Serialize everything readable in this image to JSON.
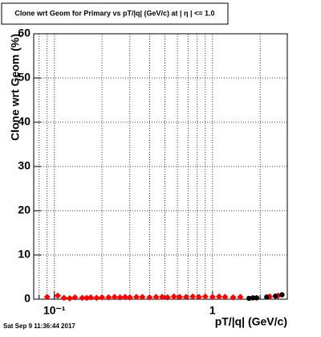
{
  "chart_data": {
    "type": "scatter",
    "title": "Clone wrt Geom for Primary vs pT/|q| (GeV/c) at | η | <= 1.0",
    "x_label": "pT/|q| (GeV/c)",
    "y_label": "Clone wrt Geom (%)",
    "footer": "Sat Sep  9 11:36:44 2017",
    "xlog": true,
    "xlim": [
      0.074,
      2.97
    ],
    "ylim": [
      0,
      60
    ],
    "xticks": [
      {
        "value": 0.1,
        "label": "10⁻¹"
      },
      1
    ],
    "yticks": [
      0,
      10,
      20,
      30,
      40,
      50,
      60
    ],
    "xgrid": [
      0.08,
      0.09,
      0.1,
      0.2,
      0.3,
      0.4,
      0.5,
      0.6,
      0.7,
      0.8,
      0.9,
      1,
      2
    ],
    "grid": true,
    "series": [
      {
        "color": "#ff0000",
        "marker": "diamond",
        "x": [
          0.09,
          0.105,
          0.115,
          0.125,
          0.135,
          0.15,
          0.16,
          0.17,
          0.185,
          0.2,
          0.22,
          0.24,
          0.26,
          0.28,
          0.3,
          0.33,
          0.36,
          0.4,
          0.44,
          0.48,
          0.52,
          0.57,
          0.62,
          0.68,
          0.75,
          0.82,
          0.9,
          1.0,
          1.1,
          1.2,
          1.35,
          1.5,
          2.3,
          2.6
        ],
        "values": [
          0.5,
          0.8,
          0.3,
          0.2,
          0.4,
          0.3,
          0.3,
          0.4,
          0.3,
          0.4,
          0.4,
          0.5,
          0.4,
          0.5,
          0.4,
          0.5,
          0.5,
          0.4,
          0.5,
          0.5,
          0.4,
          0.6,
          0.5,
          0.5,
          0.6,
          0.5,
          0.6,
          0.5,
          0.6,
          0.5,
          0.4,
          0.5,
          0.6,
          0.8
        ]
      },
      {
        "color": "#000000",
        "marker": "circle",
        "x": [
          1.7,
          1.8,
          1.9,
          2.2,
          2.5,
          2.75
        ],
        "values": [
          0.2,
          0.3,
          0.3,
          0.5,
          0.7,
          1.0
        ]
      }
    ]
  }
}
